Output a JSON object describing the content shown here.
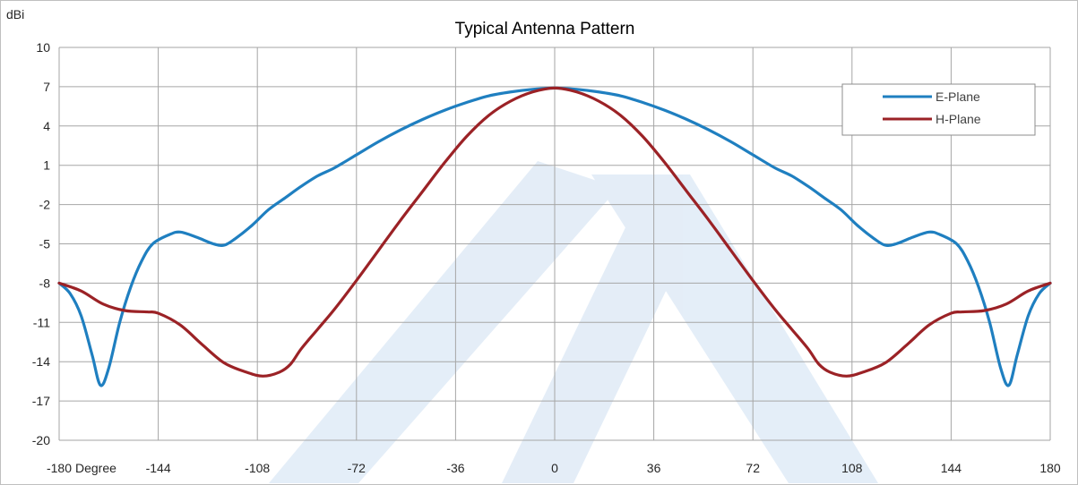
{
  "chart_data": {
    "type": "line",
    "title": "Typical Antenna Pattern",
    "ylabel": "dBi",
    "xlabel": "Degree",
    "xlim": [
      -180,
      180
    ],
    "ylim": [
      -20,
      10
    ],
    "x_ticks": [
      -180,
      -144,
      -108,
      -72,
      -36,
      0,
      36,
      72,
      108,
      144,
      180
    ],
    "y_ticks": [
      10,
      7,
      4,
      1,
      -2,
      -5,
      -8,
      -11,
      -14,
      -17,
      -20
    ],
    "x_tick_labels": [
      "-180",
      "-144",
      "-108",
      "-72",
      "-36",
      "0",
      "36",
      "72",
      "108",
      "144",
      "180"
    ],
    "y_tick_labels": [
      "10",
      "7",
      "4",
      "1",
      "-2",
      "-5",
      "-8",
      "-11",
      "-14",
      "-17",
      "-20"
    ],
    "grid": true,
    "legend": "top-right",
    "series": [
      {
        "name": "E-Plane",
        "color": "#1f7fc0",
        "points": [
          [
            -180,
            -8
          ],
          [
            -176,
            -8.8
          ],
          [
            -172,
            -10.5
          ],
          [
            -168,
            -13.5
          ],
          [
            -165,
            -15.8
          ],
          [
            -162,
            -14.5
          ],
          [
            -158,
            -11
          ],
          [
            -154,
            -8.3
          ],
          [
            -150,
            -6.3
          ],
          [
            -146,
            -5
          ],
          [
            -140,
            -4.3
          ],
          [
            -136,
            -4.1
          ],
          [
            -130,
            -4.5
          ],
          [
            -124,
            -5
          ],
          [
            -120,
            -5.1
          ],
          [
            -116,
            -4.6
          ],
          [
            -110,
            -3.6
          ],
          [
            -104,
            -2.4
          ],
          [
            -98,
            -1.5
          ],
          [
            -92,
            -0.6
          ],
          [
            -86,
            0.2
          ],
          [
            -80,
            0.8
          ],
          [
            -72,
            1.8
          ],
          [
            -64,
            2.8
          ],
          [
            -56,
            3.7
          ],
          [
            -48,
            4.5
          ],
          [
            -40,
            5.2
          ],
          [
            -32,
            5.8
          ],
          [
            -24,
            6.3
          ],
          [
            -16,
            6.6
          ],
          [
            -8,
            6.8
          ],
          [
            0,
            6.9
          ],
          [
            8,
            6.8
          ],
          [
            16,
            6.6
          ],
          [
            24,
            6.3
          ],
          [
            32,
            5.8
          ],
          [
            40,
            5.2
          ],
          [
            48,
            4.5
          ],
          [
            56,
            3.7
          ],
          [
            64,
            2.8
          ],
          [
            72,
            1.8
          ],
          [
            80,
            0.8
          ],
          [
            86,
            0.2
          ],
          [
            92,
            -0.6
          ],
          [
            98,
            -1.5
          ],
          [
            104,
            -2.4
          ],
          [
            110,
            -3.6
          ],
          [
            116,
            -4.6
          ],
          [
            120,
            -5.1
          ],
          [
            124,
            -5
          ],
          [
            130,
            -4.5
          ],
          [
            136,
            -4.1
          ],
          [
            140,
            -4.3
          ],
          [
            146,
            -5
          ],
          [
            150,
            -6.3
          ],
          [
            154,
            -8.3
          ],
          [
            158,
            -11
          ],
          [
            162,
            -14.5
          ],
          [
            165,
            -15.8
          ],
          [
            168,
            -13.5
          ],
          [
            172,
            -10.5
          ],
          [
            176,
            -8.8
          ],
          [
            180,
            -8
          ]
        ]
      },
      {
        "name": "H-Plane",
        "color": "#9b2226",
        "points": [
          [
            -180,
            -8
          ],
          [
            -172,
            -8.6
          ],
          [
            -164,
            -9.6
          ],
          [
            -156,
            -10.1
          ],
          [
            -148,
            -10.2
          ],
          [
            -144,
            -10.3
          ],
          [
            -136,
            -11.2
          ],
          [
            -128,
            -12.7
          ],
          [
            -120,
            -14.1
          ],
          [
            -112,
            -14.8
          ],
          [
            -106,
            -15.1
          ],
          [
            -100,
            -14.8
          ],
          [
            -96,
            -14.2
          ],
          [
            -92,
            -13
          ],
          [
            -86,
            -11.5
          ],
          [
            -80,
            -10
          ],
          [
            -72,
            -7.8
          ],
          [
            -64,
            -5.5
          ],
          [
            -56,
            -3.2
          ],
          [
            -48,
            -1
          ],
          [
            -40,
            1.2
          ],
          [
            -32,
            3.2
          ],
          [
            -24,
            4.8
          ],
          [
            -16,
            5.9
          ],
          [
            -8,
            6.6
          ],
          [
            0,
            6.9
          ],
          [
            8,
            6.6
          ],
          [
            16,
            5.9
          ],
          [
            24,
            4.8
          ],
          [
            32,
            3.2
          ],
          [
            40,
            1.2
          ],
          [
            48,
            -1
          ],
          [
            56,
            -3.2
          ],
          [
            64,
            -5.5
          ],
          [
            72,
            -7.8
          ],
          [
            80,
            -10
          ],
          [
            86,
            -11.5
          ],
          [
            92,
            -13
          ],
          [
            96,
            -14.2
          ],
          [
            100,
            -14.8
          ],
          [
            106,
            -15.1
          ],
          [
            112,
            -14.8
          ],
          [
            120,
            -14.1
          ],
          [
            128,
            -12.7
          ],
          [
            136,
            -11.2
          ],
          [
            144,
            -10.3
          ],
          [
            148,
            -10.2
          ],
          [
            156,
            -10.1
          ],
          [
            164,
            -9.6
          ],
          [
            172,
            -8.6
          ],
          [
            180,
            -8
          ]
        ]
      }
    ]
  }
}
